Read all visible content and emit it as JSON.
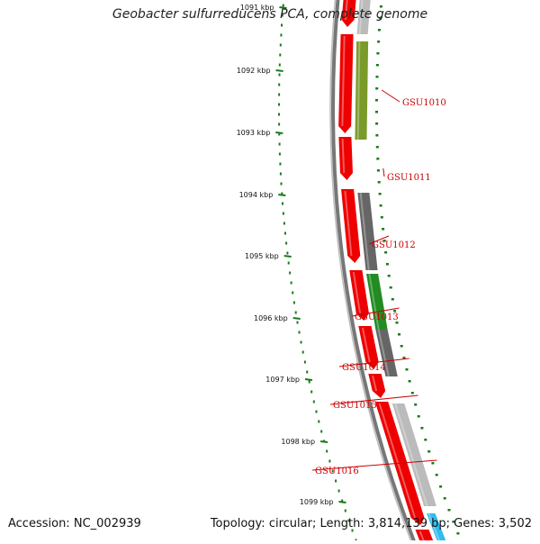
{
  "title": "Geobacter sulfurreducens PCA, complete genome",
  "footer": {
    "accession_label": "Accession:",
    "accession": "NC_002939",
    "topology_label": "Topology:",
    "topology": "circular",
    "length_label": "Length:",
    "length": "3,814,139 bp",
    "genes_label": "Genes:",
    "genes": "3,502"
  },
  "ruler": {
    "labels": [
      "1091 kbp",
      "1092 kbp",
      "1093 kbp",
      "1094 kbp",
      "1095 kbp",
      "1096 kbp",
      "1097 kbp",
      "1098 kbp",
      "1099 kbp"
    ]
  },
  "genes": [
    {
      "label": "GSU1010",
      "color": "#7a9a2a"
    },
    {
      "label": "GSU1011",
      "color": "#ee0000"
    },
    {
      "label": "GSU1012",
      "color": "#666666"
    },
    {
      "label": "GSU1013",
      "color": "#228b22"
    },
    {
      "label": "GSU1014",
      "color": "#666666"
    },
    {
      "label": "GSU1015",
      "color": "#ee0000"
    },
    {
      "label": "GSU1016",
      "color": "#bbbbbb"
    }
  ],
  "colors": {
    "cds": "#ee0000",
    "backbone": "#777777",
    "ruler": "#1a7a1a",
    "label": "#cc0000",
    "other": "#33bbee"
  }
}
